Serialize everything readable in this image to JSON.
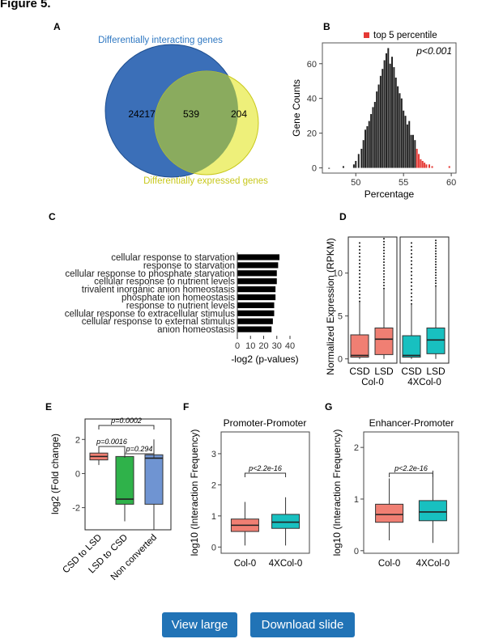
{
  "figure_title": "Figure 5.",
  "panel_labels": {
    "A": "A",
    "B": "B",
    "C": "C",
    "D": "D",
    "E": "E",
    "F": "F",
    "G": "G"
  },
  "buttons": {
    "view_large": "View large",
    "download_slide": "Download slide"
  },
  "colors": {
    "blue": "#3b6fb8",
    "yellow": "#eef07a",
    "blue_text": "#2f78c2",
    "yellow_text": "#c8c81c",
    "red": "#f07f73",
    "green": "#2fb24a",
    "cornflower": "#6f94d2",
    "teal": "#18c0c0",
    "hist_red": "#e53935",
    "button_bg": "#2173b6"
  },
  "venn": {
    "label_top": "Differentially interacting genes",
    "label_bottom": "Differentially expressed genes",
    "left_only": "24217",
    "overlap": "539",
    "right_only": "204"
  },
  "chart_data": [
    {
      "panel": "B",
      "type": "bar",
      "title": "",
      "xlabel": "Percentage",
      "ylabel": "Gene Counts",
      "annotation": "p<0.001",
      "legend": "top 5 percentile",
      "xlim": [
        46.5,
        60.5
      ],
      "ylim": [
        -3,
        72
      ],
      "xticks": [
        "50",
        "55",
        "60"
      ],
      "yticks": [
        "0",
        "20",
        "40",
        "60"
      ],
      "x": [
        47.2,
        48.7,
        49.8,
        50.0,
        50.3,
        50.6,
        50.8,
        51.0,
        51.2,
        51.4,
        51.6,
        51.8,
        52.0,
        52.2,
        52.4,
        52.6,
        52.8,
        53.0,
        53.2,
        53.4,
        53.6,
        53.8,
        54.0,
        54.2,
        54.4,
        54.6,
        54.8,
        55.0,
        55.2,
        55.4,
        55.6,
        55.8,
        56.0,
        56.2,
        56.4,
        56.6,
        56.8,
        57.0,
        57.2,
        57.4,
        57.7,
        58.0,
        59.8
      ],
      "values": [
        0,
        1,
        2,
        4,
        8,
        11,
        16,
        22,
        24,
        27,
        31,
        35,
        38,
        44,
        48,
        53,
        57,
        62,
        66,
        69,
        60,
        64,
        58,
        52,
        47,
        43,
        40,
        33,
        30,
        25,
        27,
        19,
        19,
        16,
        11,
        8,
        5,
        4,
        3,
        2,
        2,
        1,
        1
      ],
      "top_percentile_from_x": 56.4
    },
    {
      "panel": "C",
      "type": "bar",
      "orientation": "horizontal",
      "xlabel": "-log2 (p-values)",
      "xlim": [
        0,
        40
      ],
      "xticks": [
        "0",
        "10",
        "20",
        "30",
        "40"
      ],
      "categories": [
        "cellular response to starvation",
        "response to starvation",
        "cellular response to phosphate starvation",
        "cellular response to nutrient levels",
        "trivalent inorganic anion homeostasis",
        "phosphate ion homeostasis",
        "response to nutrient levels",
        "cellular response to extracellular stimulus",
        "cellular response to external stimulus",
        "anion homeostasis"
      ],
      "values": [
        32,
        31,
        30,
        30,
        29,
        29,
        28,
        28,
        27,
        26
      ]
    },
    {
      "panel": "D",
      "type": "box",
      "ylabel": "Normalized Expression (RPKM)",
      "ylim": [
        -0.5,
        14.2
      ],
      "yticks": [
        "0",
        "5",
        "10"
      ],
      "groups": [
        {
          "facet": "Col-0",
          "boxes": [
            {
              "name": "CSD",
              "color": "red",
              "low": 0,
              "q1": 0.2,
              "median": 0.4,
              "q3": 2.8,
              "high": 6.7,
              "outlier_top": 13.5
            },
            {
              "name": "LSD",
              "color": "red",
              "low": 0,
              "q1": 0.5,
              "median": 2.3,
              "q3": 3.6,
              "high": 8.2,
              "outlier_top": 14.0
            }
          ]
        },
        {
          "facet": "4XCol-0",
          "boxes": [
            {
              "name": "CSD",
              "color": "teal",
              "low": 0,
              "q1": 0.2,
              "median": 0.4,
              "q3": 2.7,
              "high": 6.4,
              "outlier_top": 13.5
            },
            {
              "name": "LSD",
              "color": "teal",
              "low": 0,
              "q1": 0.6,
              "median": 2.2,
              "q3": 3.6,
              "high": 8.5,
              "outlier_top": 13.8
            }
          ]
        }
      ]
    },
    {
      "panel": "E",
      "type": "box",
      "ylabel": "log2 (Fold change)",
      "ylim": [
        -3.3,
        3.2
      ],
      "yticks": [
        "-2",
        "0",
        "2"
      ],
      "categories": [
        "CSD to LSD",
        "LSD to CSD",
        "Non converted"
      ],
      "boxes": [
        {
          "color": "red",
          "low": 0.5,
          "q1": 0.8,
          "median": 1.0,
          "q3": 1.2,
          "high": 1.5
        },
        {
          "color": "green",
          "low": -2.8,
          "q1": -1.8,
          "median": -1.5,
          "q3": 1.0,
          "high": 1.5
        },
        {
          "color": "cornflower",
          "low": -3.3,
          "q1": -1.8,
          "median": 0.9,
          "q3": 1.1,
          "high": 2.0
        }
      ],
      "brackets": [
        {
          "from": 0,
          "to": 1,
          "label": "p=0.0016"
        },
        {
          "from": 1,
          "to": 2,
          "label": "p=0.294"
        },
        {
          "from": 0,
          "to": 2,
          "label": "p=0.0002"
        }
      ]
    },
    {
      "panel": "F",
      "type": "box",
      "title": "Promoter-Promoter",
      "ylabel": "log10 (Interaction Frequency)",
      "ylim": [
        -0.2,
        3.7
      ],
      "yticks": [
        "0",
        "1",
        "2",
        "3"
      ],
      "categories": [
        "Col-0",
        "4XCol-0"
      ],
      "boxes": [
        {
          "color": "red",
          "low": 0.05,
          "q1": 0.5,
          "median": 0.7,
          "q3": 0.9,
          "high": 1.45
        },
        {
          "color": "teal",
          "low": 0.05,
          "q1": 0.6,
          "median": 0.8,
          "q3": 1.05,
          "high": 1.6
        }
      ],
      "bracket_label": "p<2.2e-16"
    },
    {
      "panel": "G",
      "type": "box",
      "title": "Enhancer-Promoter",
      "ylabel": "log10 (Interaction Frequency)",
      "ylim": [
        -0.05,
        2.3
      ],
      "yticks": [
        "0",
        "1",
        "2"
      ],
      "categories": [
        "Col-0",
        "4XCol-0"
      ],
      "boxes": [
        {
          "color": "red",
          "low": 0.2,
          "q1": 0.55,
          "median": 0.7,
          "q3": 0.9,
          "high": 1.4
        },
        {
          "color": "teal",
          "low": 0.15,
          "q1": 0.58,
          "median": 0.75,
          "q3": 0.97,
          "high": 1.55
        }
      ],
      "bracket_label": "p<2.2e-16"
    }
  ]
}
